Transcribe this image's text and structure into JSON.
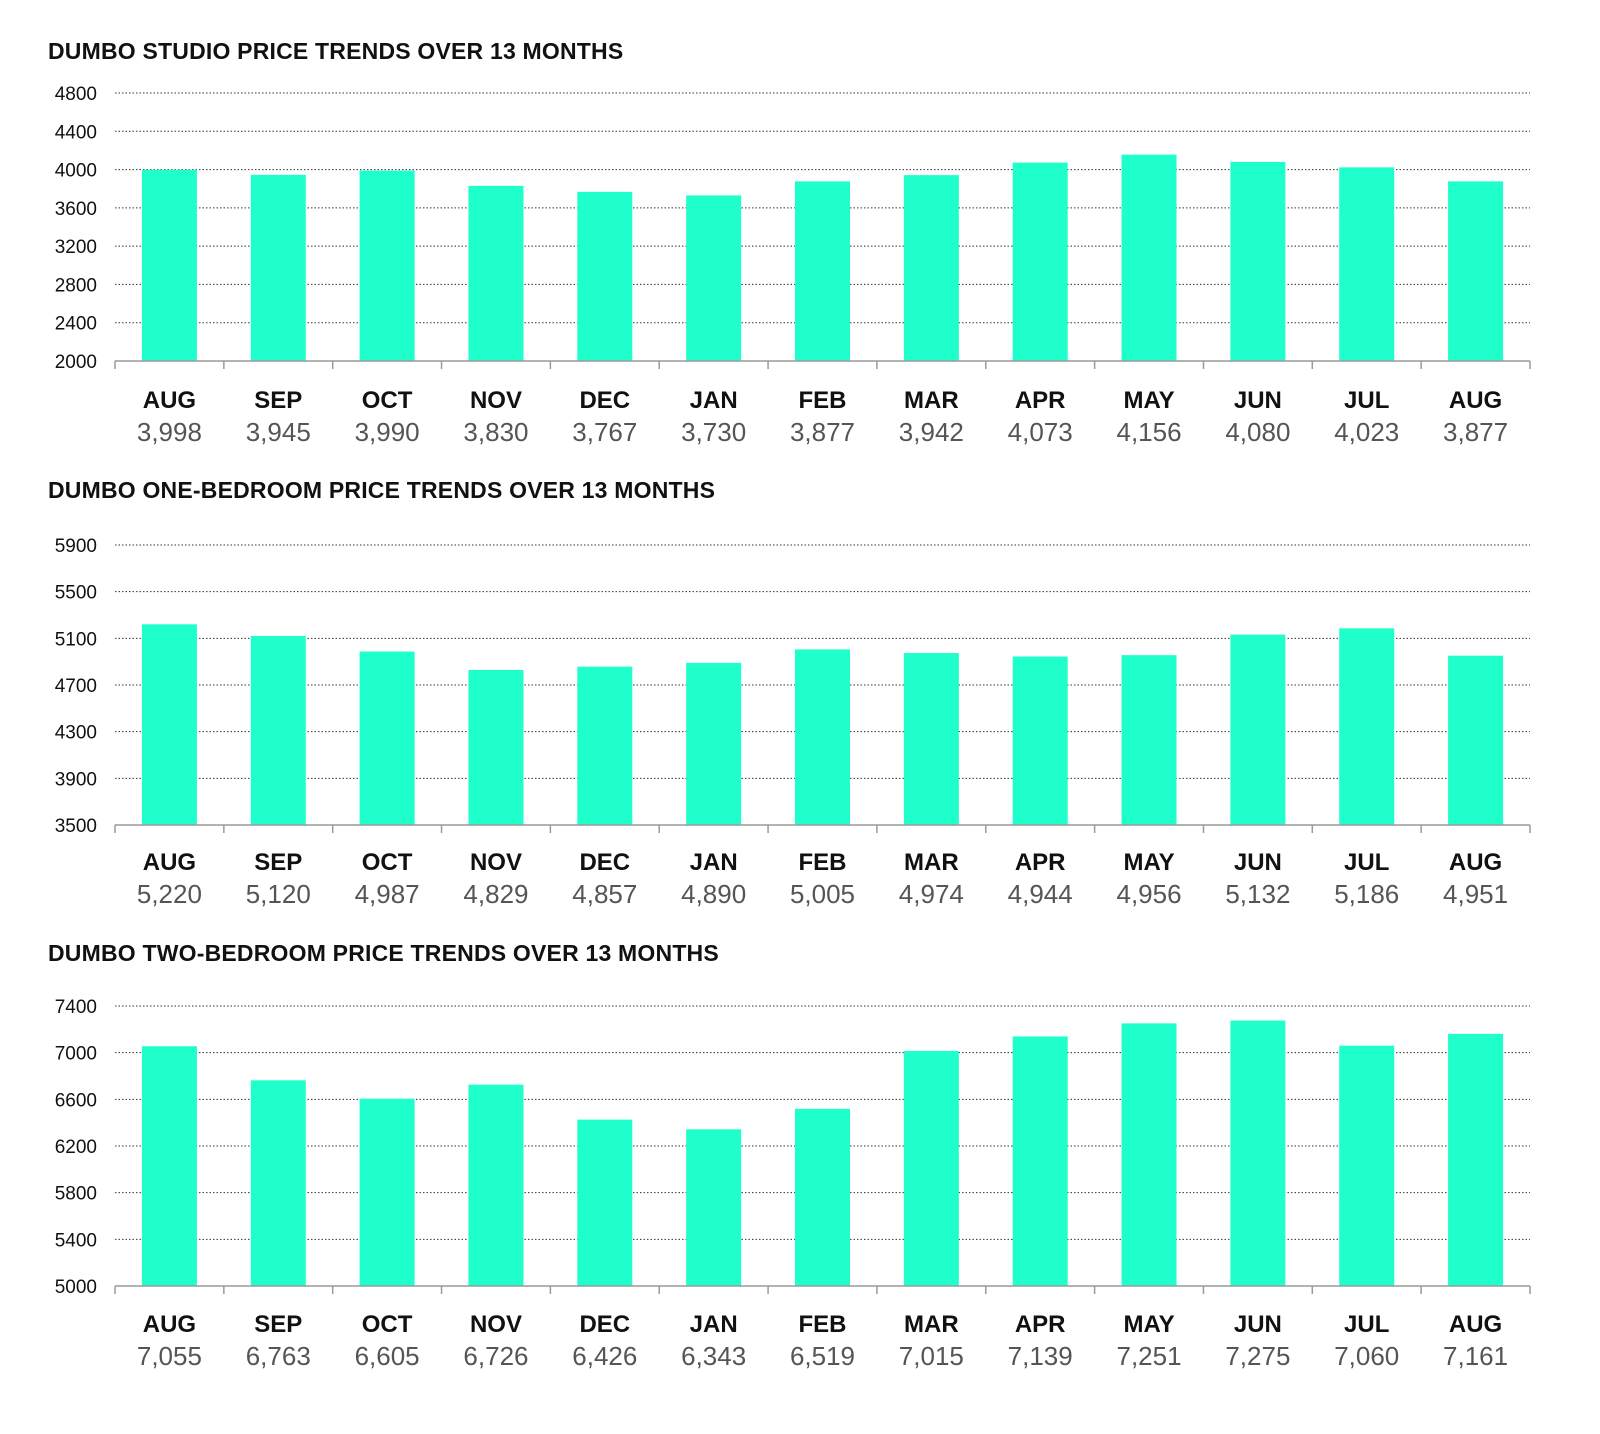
{
  "colors": {
    "bar": "#1fffcb",
    "grid": "#333333",
    "axis": "#9a9a9a"
  },
  "chart_data": [
    {
      "type": "bar",
      "title": "DUMBO STUDIO PRICE TRENDS OVER 13 MONTHS",
      "categories": [
        "AUG",
        "SEP",
        "OCT",
        "NOV",
        "DEC",
        "JAN",
        "FEB",
        "MAR",
        "APR",
        "MAY",
        "JUN",
        "JUL",
        "AUG"
      ],
      "values": [
        3998,
        3945,
        3990,
        3830,
        3767,
        3730,
        3877,
        3942,
        4073,
        4156,
        4080,
        4023,
        3877
      ],
      "value_labels": [
        "3,998",
        "3,945",
        "3,990",
        "3,830",
        "3,767",
        "3,730",
        "3,877",
        "3,942",
        "4,073",
        "4,156",
        "4,080",
        "4,023",
        "3,877"
      ],
      "ylim": [
        2000,
        4800
      ],
      "yticks": [
        2000,
        2400,
        2800,
        3200,
        3600,
        4000,
        4400,
        4800
      ],
      "grid": true
    },
    {
      "type": "bar",
      "title": "DUMBO ONE-BEDROOM PRICE TRENDS OVER 13 MONTHS",
      "categories": [
        "AUG",
        "SEP",
        "OCT",
        "NOV",
        "DEC",
        "JAN",
        "FEB",
        "MAR",
        "APR",
        "MAY",
        "JUN",
        "JUL",
        "AUG"
      ],
      "values": [
        5220,
        5120,
        4987,
        4829,
        4857,
        4890,
        5005,
        4974,
        4944,
        4956,
        5132,
        5186,
        4951
      ],
      "value_labels": [
        "5,220",
        "5,120",
        "4,987",
        "4,829",
        "4,857",
        "4,890",
        "5,005",
        "4,974",
        "4,944",
        "4,956",
        "5,132",
        "5,186",
        "4,951"
      ],
      "ylim": [
        3500,
        5900
      ],
      "yticks": [
        3500,
        3900,
        4300,
        4700,
        5100,
        5500,
        5900
      ],
      "grid": true
    },
    {
      "type": "bar",
      "title": "DUMBO TWO-BEDROOM PRICE TRENDS OVER 13 MONTHS",
      "categories": [
        "AUG",
        "SEP",
        "OCT",
        "NOV",
        "DEC",
        "JAN",
        "FEB",
        "MAR",
        "APR",
        "MAY",
        "JUN",
        "JUL",
        "AUG"
      ],
      "values": [
        7055,
        6763,
        6605,
        6726,
        6426,
        6343,
        6519,
        7015,
        7139,
        7251,
        7275,
        7060,
        7161
      ],
      "value_labels": [
        "7,055",
        "6,763",
        "6,605",
        "6,726",
        "6,426",
        "6,343",
        "6,519",
        "7,015",
        "7,139",
        "7,251",
        "7,275",
        "7,060",
        "7,161"
      ],
      "ylim": [
        5000,
        7400
      ],
      "yticks": [
        5000,
        5400,
        5800,
        6200,
        6600,
        7000,
        7400
      ],
      "grid": true
    }
  ]
}
